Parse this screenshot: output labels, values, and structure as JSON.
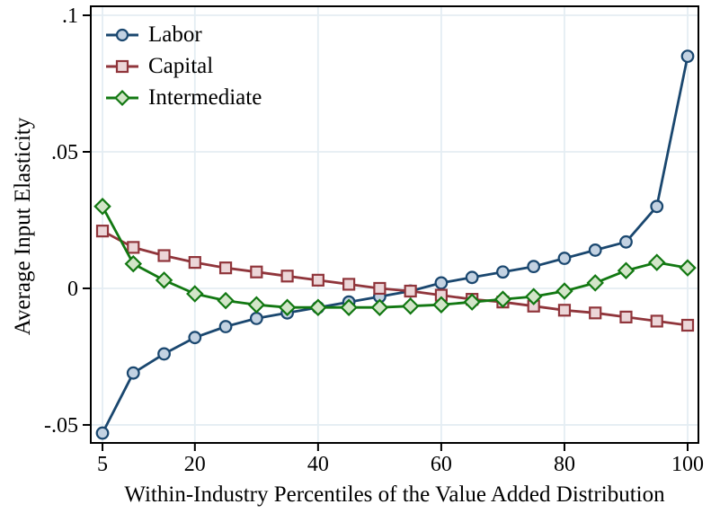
{
  "chart_data": {
    "type": "line",
    "title": "",
    "xlabel": "Within-Industry Percentiles of the Value Added Distribution",
    "ylabel": "Average Input Elasticity",
    "x": [
      5,
      10,
      15,
      20,
      25,
      30,
      35,
      40,
      45,
      50,
      55,
      60,
      65,
      70,
      75,
      80,
      85,
      90,
      95,
      100
    ],
    "series": [
      {
        "name": "Labor",
        "marker": "circle",
        "color": "#1a476f",
        "marker_fill": "#c3d2e2",
        "values": [
          -0.053,
          -0.031,
          -0.024,
          -0.018,
          -0.014,
          -0.011,
          -0.009,
          -0.007,
          -0.005,
          -0.003,
          -0.001,
          0.002,
          0.004,
          0.006,
          0.008,
          0.011,
          0.014,
          0.017,
          0.03,
          0.085
        ]
      },
      {
        "name": "Capital",
        "marker": "square",
        "color": "#90353b",
        "marker_fill": "#ecd6d8",
        "values": [
          0.021,
          0.015,
          0.012,
          0.0095,
          0.0075,
          0.006,
          0.0045,
          0.003,
          0.0015,
          0.0,
          -0.001,
          -0.0025,
          -0.004,
          -0.005,
          -0.0065,
          -0.008,
          -0.009,
          -0.0105,
          -0.012,
          -0.0135
        ]
      },
      {
        "name": "Intermediate",
        "marker": "diamond",
        "color": "#127812",
        "marker_fill": "#d2e5c8",
        "values": [
          0.03,
          0.009,
          0.003,
          -0.002,
          -0.0045,
          -0.006,
          -0.007,
          -0.007,
          -0.007,
          -0.007,
          -0.0065,
          -0.006,
          -0.005,
          -0.004,
          -0.003,
          -0.001,
          0.002,
          0.0065,
          0.0095,
          0.0075
        ]
      }
    ],
    "xlim": [
      3.1,
      101.75
    ],
    "ylim": [
      -0.0566,
      0.1033
    ],
    "x_ticks": {
      "values": [
        5,
        20,
        40,
        60,
        80,
        100
      ],
      "labels": [
        "5",
        "20",
        "40",
        "60",
        "80",
        "100"
      ]
    },
    "y_ticks": {
      "values": [
        -0.05,
        0,
        0.05,
        0.1
      ],
      "labels": [
        "-.05",
        "0",
        ".05",
        ".1"
      ]
    },
    "grid": true,
    "grid_color": "#e4edf3",
    "axis_color": "#000000",
    "background": "#ffffff",
    "legend_position": "top-left-inside",
    "legend_border": false
  }
}
